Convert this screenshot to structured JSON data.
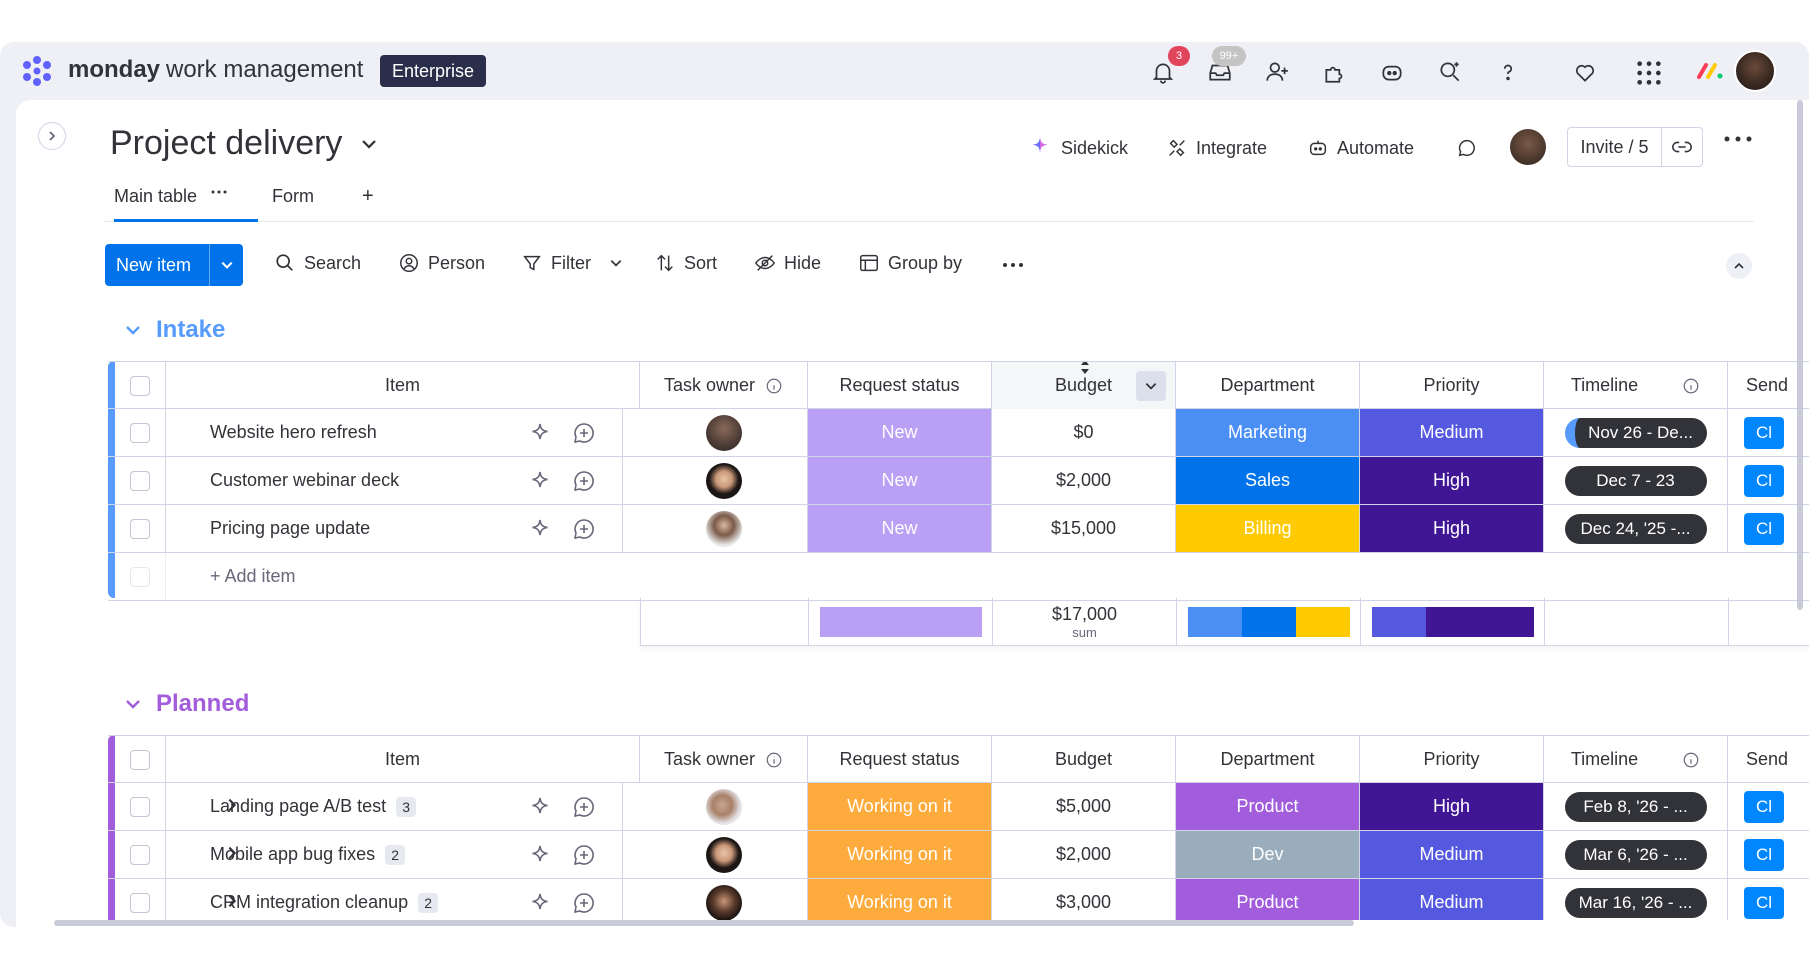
{
  "topbar": {
    "logo_word": "monday",
    "logo_suffix": "work management",
    "plan_badge": "Enterprise",
    "notifications_count": "3",
    "inbox_count": "99+"
  },
  "board": {
    "title": "Project delivery",
    "actions": {
      "sidekick": "Sidekick",
      "integrate": "Integrate",
      "automate": "Automate",
      "invite": "Invite / 5"
    },
    "tabs": {
      "main": "Main table",
      "form": "Form",
      "add": "+"
    }
  },
  "toolbar": {
    "new_item": "New item",
    "search": "Search",
    "person": "Person",
    "filter": "Filter",
    "sort": "Sort",
    "hide": "Hide",
    "group_by": "Group by"
  },
  "columns": {
    "item": "Item",
    "task_owner": "Task owner",
    "request_status": "Request status",
    "budget": "Budget",
    "department": "Department",
    "priority": "Priority",
    "timeline": "Timeline",
    "send": "Send"
  },
  "colors": {
    "accent": "#0073ea",
    "intake_group": "#579bfc",
    "planned_group": "#a25ddc",
    "status_new": "#b9a0f5",
    "status_working": "#fdab3d",
    "dept_marketing": "#4b8ff5",
    "dept_sales": "#0073ea",
    "dept_billing": "#ffcb00",
    "dept_product": "#a25ddc",
    "dept_dev": "#9aadbd",
    "priority_medium": "#5559df",
    "priority_high": "#401694"
  },
  "groups": [
    {
      "title": "Intake",
      "rows": [
        {
          "item": "Website hero refresh",
          "status": "New",
          "budget": "$0",
          "department": "Marketing",
          "priority": "Medium",
          "timeline": "Nov 26 - De...",
          "send": "Cl"
        },
        {
          "item": "Customer webinar deck",
          "status": "New",
          "budget": "$2,000",
          "department": "Sales",
          "priority": "High",
          "timeline": "Dec 7 - 23",
          "send": "Cl"
        },
        {
          "item": "Pricing page update",
          "status": "New",
          "budget": "$15,000",
          "department": "Billing",
          "priority": "High",
          "timeline": "Dec 24, '25 -...",
          "send": "Cl"
        }
      ],
      "add_item": "+ Add item",
      "summary": {
        "budget": "$17,000",
        "budget_label": "sum"
      }
    },
    {
      "title": "Planned",
      "rows": [
        {
          "item": "Landing page A/B test",
          "subitems": "3",
          "status": "Working on it",
          "budget": "$5,000",
          "department": "Product",
          "priority": "High",
          "timeline": "Feb 8, '26 - ...",
          "send": "Cl"
        },
        {
          "item": "Mobile app bug fixes",
          "subitems": "2",
          "status": "Working on it",
          "budget": "$2,000",
          "department": "Dev",
          "priority": "Medium",
          "timeline": "Mar 6, '26 - ...",
          "send": "Cl"
        },
        {
          "item": "CRM integration cleanup",
          "subitems": "2",
          "status": "Working on it",
          "budget": "$3,000",
          "department": "Product",
          "priority": "Medium",
          "timeline": "Mar 16, '26 - ...",
          "send": "Cl"
        }
      ]
    }
  ]
}
